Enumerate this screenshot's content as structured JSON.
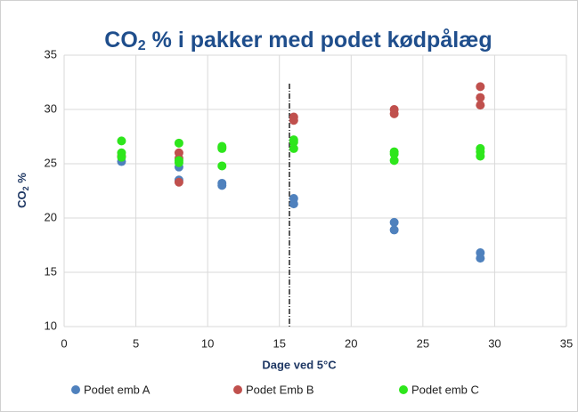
{
  "chart_data": {
    "type": "scatter",
    "title": [
      "CO",
      "2",
      " % i pakker med podet kødpålæg"
    ],
    "xlabel": "Dage ved 5°C",
    "ylabel": [
      "CO",
      "2",
      " %"
    ],
    "xlim": [
      0,
      35
    ],
    "xticks": [
      0,
      5,
      10,
      15,
      20,
      25,
      30,
      35
    ],
    "ylim": [
      10,
      35
    ],
    "yticks": [
      10,
      15,
      20,
      25,
      30,
      35
    ],
    "grid": true,
    "legend": "bottom",
    "vline": 15.7,
    "series": [
      {
        "name": "Podet emb A",
        "color": "#4f81bd",
        "x": [
          4,
          8,
          8,
          11,
          11,
          16,
          16,
          23,
          23,
          29,
          29
        ],
        "values": [
          25.2,
          24.7,
          23.5,
          23.2,
          23.0,
          21.8,
          21.3,
          19.6,
          18.9,
          16.8,
          16.3
        ]
      },
      {
        "name": "Podet Emb B",
        "color": "#c0504d",
        "x": [
          4,
          8,
          8,
          8,
          11,
          16,
          16,
          23,
          23,
          29,
          29,
          29
        ],
        "values": [
          25.7,
          26.0,
          25.5,
          23.3,
          26.5,
          29.3,
          29.0,
          30.0,
          29.6,
          32.1,
          31.1,
          30.4
        ]
      },
      {
        "name": "Podet emb C",
        "color": "#2ee61c",
        "x": [
          4,
          4,
          4,
          8,
          8,
          8,
          11,
          11,
          11,
          16,
          16,
          16,
          23,
          23,
          23,
          29,
          29,
          29
        ],
        "values": [
          27.1,
          26.0,
          25.6,
          26.9,
          25.3,
          25.1,
          26.6,
          26.4,
          24.8,
          27.2,
          27.0,
          26.4,
          26.1,
          25.9,
          25.3,
          26.4,
          26.1,
          25.7
        ]
      }
    ]
  }
}
